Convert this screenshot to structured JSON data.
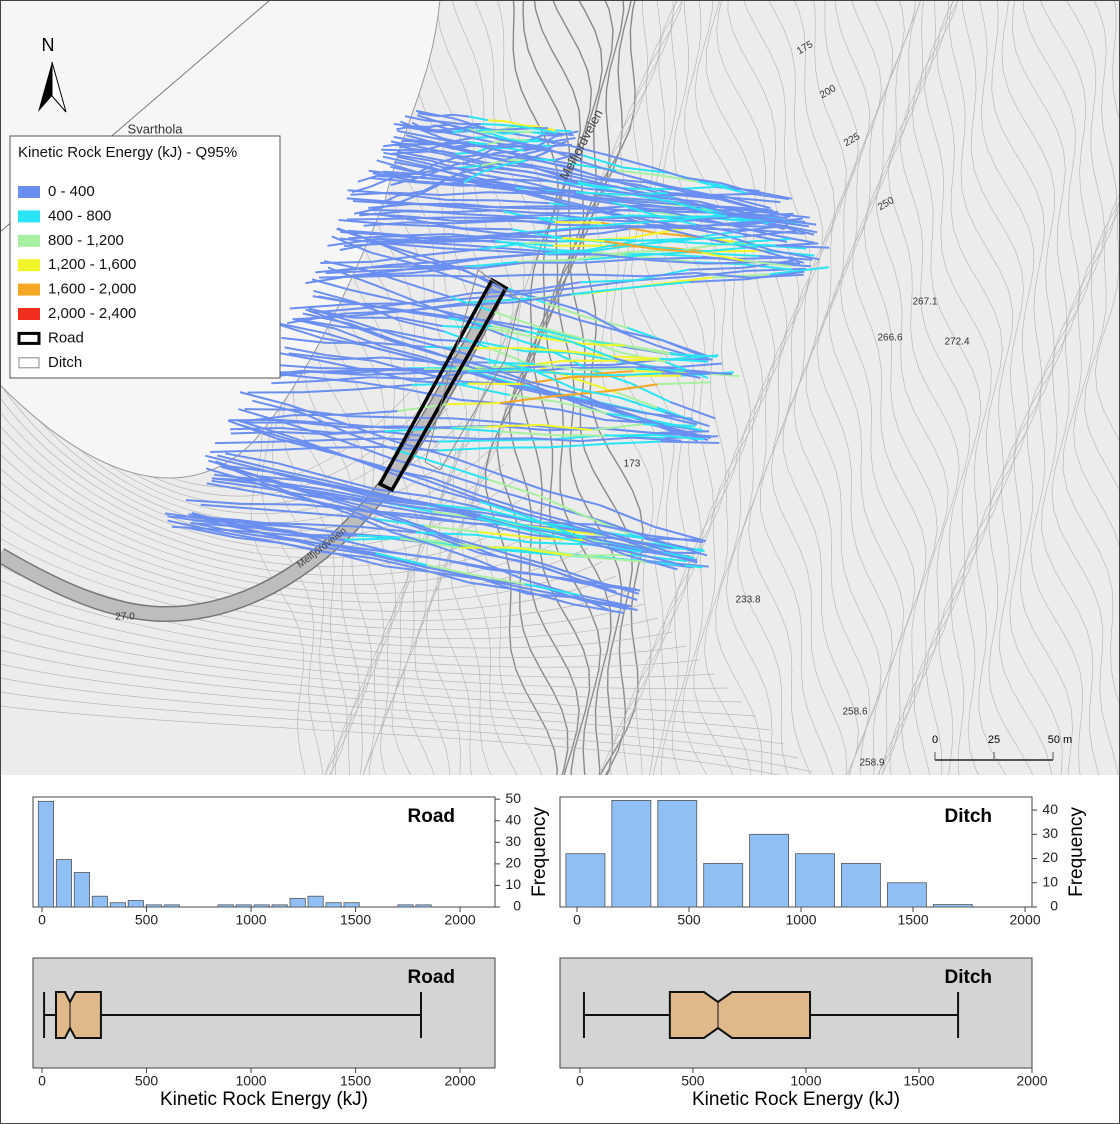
{
  "map": {
    "north": "N",
    "place": "Svarthola",
    "road_names": [
      "Melfjordveien",
      "Melfjordveien"
    ],
    "legend": {
      "title": "Kinetic Rock Energy (kJ) - Q95%",
      "items": [
        {
          "label": "0 - 400",
          "color": "#6b8ff0"
        },
        {
          "label": "400 - 800",
          "color": "#29e4f2"
        },
        {
          "label": "800 - 1,200",
          "color": "#a8f0a0"
        },
        {
          "label": "1,200 - 1,600",
          "color": "#f0f52a"
        },
        {
          "label": "1,600 - 2,000",
          "color": "#f5a623"
        },
        {
          "label": "2,000 - 2,400",
          "color": "#f22e1f"
        },
        {
          "label": "Road",
          "color": "#000000"
        },
        {
          "label": "Ditch",
          "color": "#888888"
        }
      ]
    },
    "elevations": [
      "175",
      "200",
      "225",
      "250",
      "267.1",
      "266.6",
      "272.4",
      "173",
      "233.8",
      "258.6",
      "258.9",
      "27.0"
    ],
    "scale": [
      "0",
      "25",
      "50 m"
    ]
  },
  "chart_data": [
    {
      "type": "histogram",
      "title": "Road",
      "bins": [
        -24,
        62,
        148,
        234,
        320,
        406,
        492,
        578,
        664,
        750,
        836,
        922,
        1008,
        1094,
        1180,
        1266,
        1352,
        1438,
        1524,
        1610,
        1696,
        1782,
        1868,
        1954,
        2040
      ],
      "counts": [
        49,
        22,
        16,
        5,
        2,
        3,
        1,
        1,
        0,
        0,
        1,
        1,
        1,
        1,
        4,
        5,
        2,
        2,
        0,
        0,
        1,
        1,
        0,
        0
      ],
      "color": "#8fbff5",
      "xlim": [
        -43,
        2167
      ],
      "xticks": [
        0,
        500,
        1000,
        1500,
        2000
      ],
      "ylim": [
        0,
        51
      ],
      "yticks": [
        0,
        10,
        20,
        30,
        40,
        50
      ],
      "ylabel": "Frequency"
    },
    {
      "type": "histogram",
      "title": "Ditch",
      "bins": [
        -65,
        140,
        345,
        550,
        755,
        960,
        1165,
        1370,
        1575,
        1780
      ],
      "counts": [
        22,
        44,
        44,
        18,
        30,
        22,
        18,
        10,
        1
      ],
      "color": "#8fbff5",
      "xlim": [
        -76,
        2031
      ],
      "xticks": [
        0,
        500,
        1000,
        1500,
        2000
      ],
      "ylim": [
        0,
        45.4
      ],
      "yticks": [
        0,
        10,
        20,
        30,
        40
      ],
      "ylabel": "Frequency"
    },
    {
      "type": "box",
      "title": "Road",
      "whisker_low": 10,
      "q1": 67,
      "median": 134,
      "q3": 282,
      "whisker_high": 1813,
      "notch": [
        110,
        160
      ],
      "color": "#e0b98a",
      "xlim": [
        -43,
        2167
      ],
      "xticks": [
        0,
        500,
        1000,
        1500,
        2000
      ],
      "xlabel": "Kinetic Rock Energy (kJ)"
    },
    {
      "type": "box",
      "title": "Ditch",
      "whisker_low": 18,
      "q1": 398,
      "median": 611,
      "q3": 1018,
      "whisker_high": 1673,
      "notch": [
        549,
        673
      ],
      "color": "#e0b98a",
      "xlim": [
        -88,
        2000
      ],
      "xticks": [
        0,
        500,
        1000,
        1500,
        2000
      ],
      "xlabel": "Kinetic Rock Energy (kJ)"
    }
  ]
}
